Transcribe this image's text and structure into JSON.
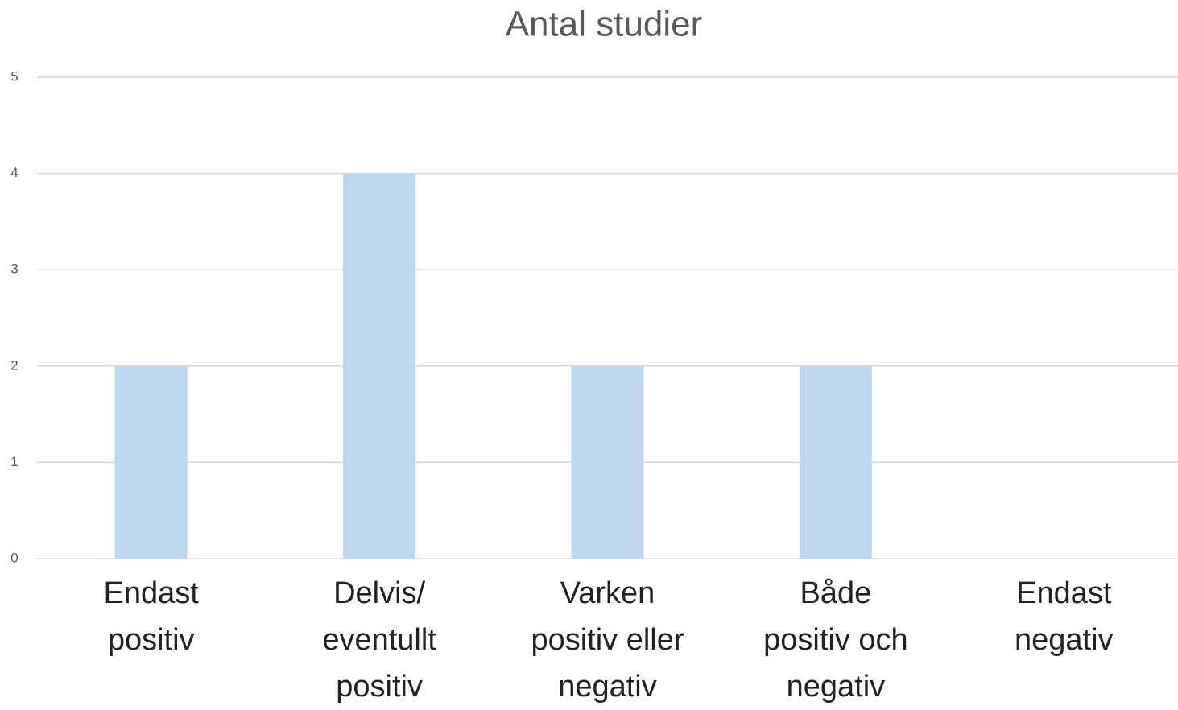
{
  "chart_data": {
    "type": "bar",
    "title": "Antal studier",
    "categories": [
      "Endast\npositiv",
      "Delvis/\neventullt\npositiv",
      "Varken\npositiv eller\nnegativ",
      "Både\npositiv och\nnegativ",
      "Endast\nnegativ"
    ],
    "values": [
      2,
      4,
      2,
      2,
      0
    ],
    "color": "#bdd7ee",
    "ylim": [
      0,
      5
    ],
    "yticks": [
      0,
      1,
      2,
      3,
      4,
      5
    ],
    "grid": true
  }
}
